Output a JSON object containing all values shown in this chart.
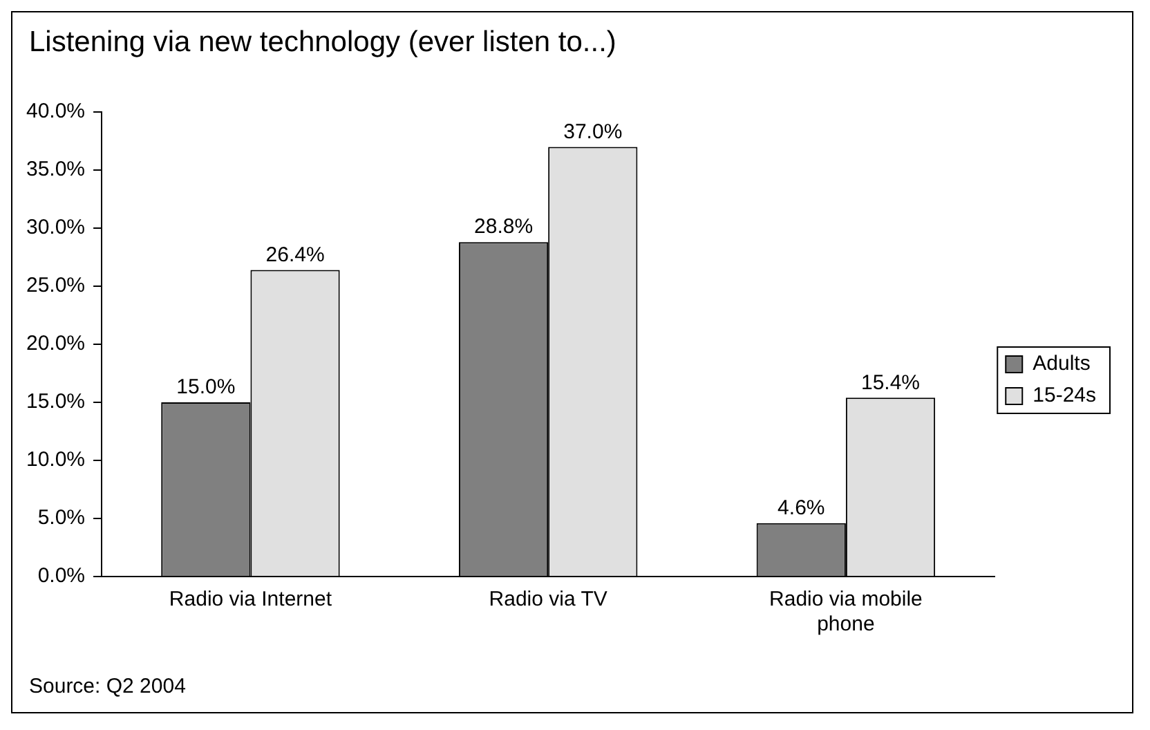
{
  "chart_data": {
    "type": "bar",
    "title": "Listening via new technology (ever listen to...)",
    "categories": [
      "Radio via Internet",
      "Radio via TV",
      "Radio via mobile phone"
    ],
    "series": [
      {
        "name": "Adults",
        "color": "#808080",
        "values": [
          15.0,
          28.8,
          4.6
        ],
        "value_labels": [
          "15.0%",
          "28.8%",
          "4.6%"
        ]
      },
      {
        "name": "15-24s",
        "color": "#e0e0e0",
        "values": [
          26.4,
          37.0,
          15.4
        ],
        "value_labels": [
          "26.4%",
          "37.0%",
          "15.4%"
        ]
      }
    ],
    "ylim": [
      0,
      40
    ],
    "yticks": [
      {
        "value": 0,
        "label": "0.0%"
      },
      {
        "value": 5,
        "label": "5.0%"
      },
      {
        "value": 10,
        "label": "10.0%"
      },
      {
        "value": 15,
        "label": "15.0%"
      },
      {
        "value": 20,
        "label": "20.0%"
      },
      {
        "value": 25,
        "label": "25.0%"
      },
      {
        "value": 30,
        "label": "30.0%"
      },
      {
        "value": 35,
        "label": "35.0%"
      },
      {
        "value": 40,
        "label": "40.0%"
      }
    ],
    "grid": false,
    "legend": "right",
    "annotations": [
      "Source: Q2 2004"
    ]
  }
}
